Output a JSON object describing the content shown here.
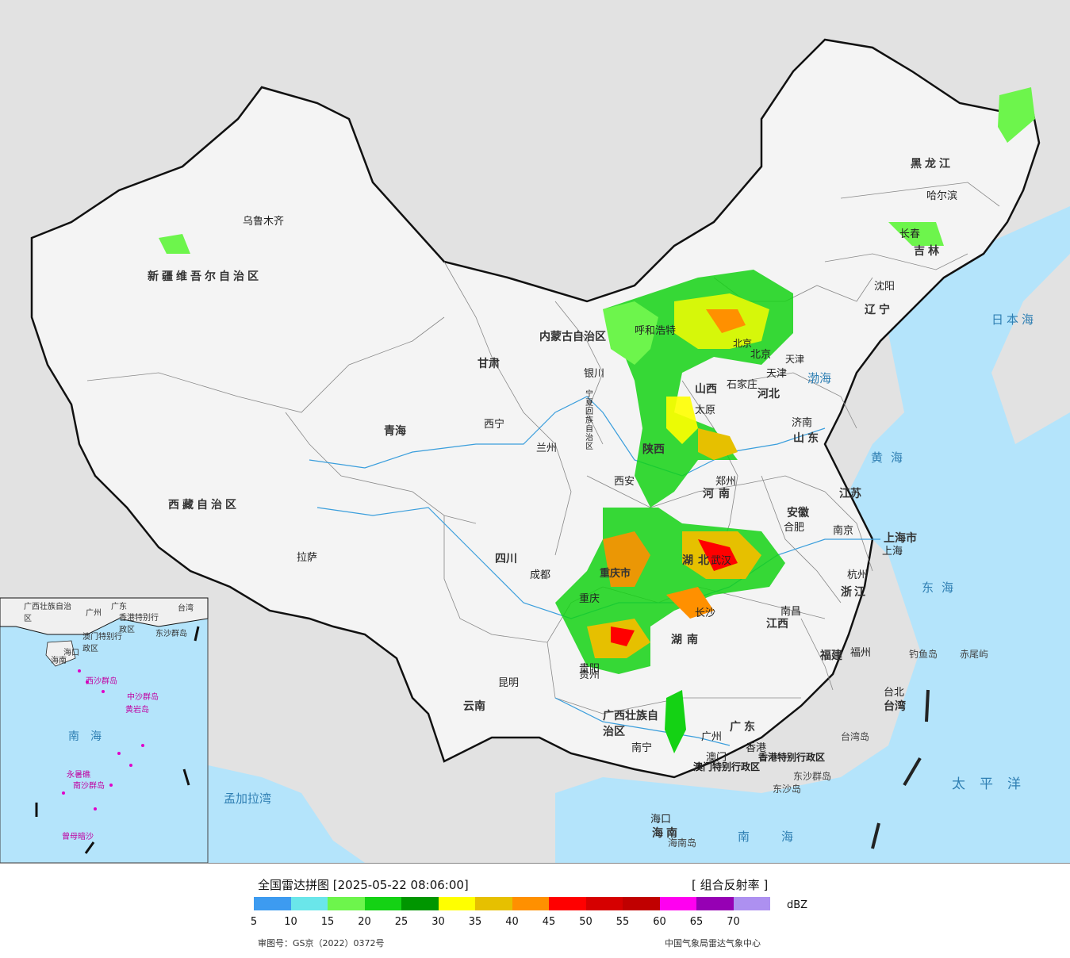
{
  "title": "全国雷达拼图 [2025-05-22 08:06:00]",
  "product": "[ 组合反射率 ]",
  "unit": "dBZ",
  "approval": "审图号：GS京（2022）0372号",
  "source": "中国气象局雷达气象中心",
  "scale": {
    "ticks": [
      "5",
      "10",
      "15",
      "20",
      "25",
      "30",
      "35",
      "40",
      "45",
      "50",
      "55",
      "60",
      "65",
      "70"
    ],
    "colors": [
      "#3d9bf0",
      "#6ae6ea",
      "#6df54c",
      "#14d214",
      "#009600",
      "#ffff00",
      "#e6c000",
      "#ff9000",
      "#ff0000",
      "#d60000",
      "#c00000",
      "#ff00f0",
      "#9600b4",
      "#ad90f0"
    ]
  },
  "map": {
    "provinces": [
      "新疆维吾尔自治区",
      "西藏自治区",
      "青海",
      "甘肃",
      "四川",
      "云南",
      "内蒙古自治区",
      "黑龙江",
      "吉林",
      "辽宁",
      "河北",
      "山东",
      "江苏",
      "安徽",
      "河南",
      "湖北",
      "湖南",
      "江西",
      "浙江",
      "福建",
      "广东",
      "广西壮族自治区",
      "海南",
      "台湾",
      "陕西",
      "山西",
      "贵州",
      "重庆市",
      "上海市",
      "北京",
      "天津"
    ],
    "cities": [
      "乌鲁木齐",
      "拉萨",
      "西宁",
      "兰州",
      "银川",
      "成都",
      "昆明",
      "贵阳",
      "南宁",
      "广州",
      "香港",
      "澳门",
      "海口",
      "长沙",
      "南昌",
      "福州",
      "台北",
      "杭州",
      "南京",
      "合肥",
      "上海",
      "郑州",
      "西安",
      "太原",
      "石家庄",
      "济南",
      "沈阳",
      "长春",
      "哈尔滨",
      "呼和浩特",
      "重庆",
      "武汉",
      "北京",
      "天津"
    ],
    "special_regions": [
      "宁夏回族自治区",
      "香港特别行政区",
      "澳门特别行政区"
    ],
    "seas": [
      "渤海",
      "黄海",
      "东海",
      "南海",
      "日本海",
      "太平洋",
      "孟加拉湾"
    ],
    "islands": [
      "钓鱼岛",
      "赤尾屿",
      "台湾岛",
      "海南岛",
      "东沙群岛",
      "东沙岛"
    ],
    "inset": {
      "labels": [
        "广西壮族自治区",
        "广州",
        "广东",
        "香港特别行政区",
        "澳门特别行政区",
        "台湾",
        "海口",
        "海南",
        "东沙群岛",
        "西沙群岛",
        "中沙群岛",
        "黄岩岛",
        "南沙群岛",
        "南海",
        "永暑礁",
        "曾母暗沙"
      ]
    }
  }
}
